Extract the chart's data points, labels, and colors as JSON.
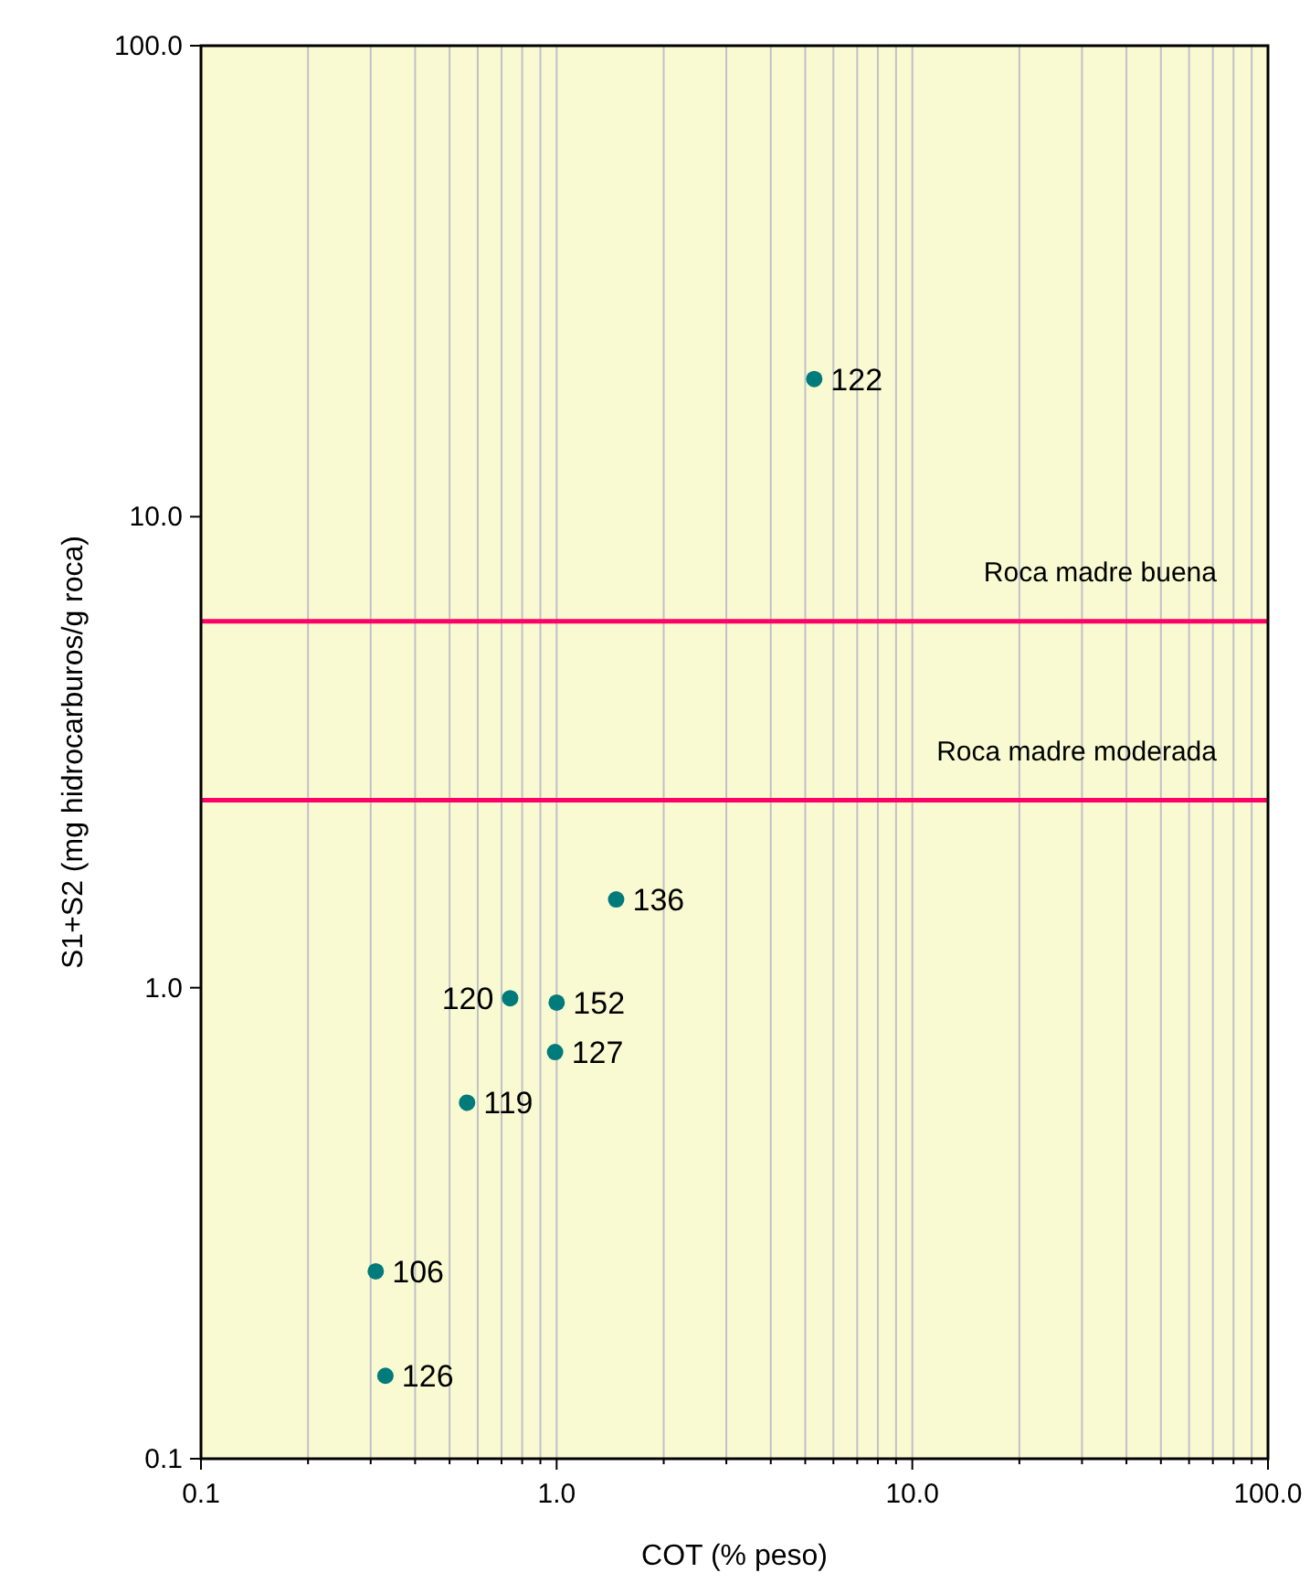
{
  "chart_data": {
    "type": "scatter",
    "xlabel": "COT (% peso)",
    "ylabel": "S1+S2 (mg hidrocarburos/g roca)",
    "log": "xy",
    "grid": "x",
    "marker": "circle",
    "xlim": [
      0.1,
      100
    ],
    "ylim": [
      0.1,
      100
    ],
    "xticks": [
      {
        "value": 0.1,
        "label": "0.1"
      },
      {
        "value": 0.2,
        "label": null
      },
      {
        "value": 0.3,
        "label": null
      },
      {
        "value": 0.4,
        "label": null
      },
      {
        "value": 0.5,
        "label": null
      },
      {
        "value": 0.6,
        "label": null
      },
      {
        "value": 0.7,
        "label": null
      },
      {
        "value": 0.8,
        "label": null
      },
      {
        "value": 0.9,
        "label": null
      },
      {
        "value": 1,
        "label": "1.0"
      },
      {
        "value": 2,
        "label": null
      },
      {
        "value": 3,
        "label": null
      },
      {
        "value": 4,
        "label": null
      },
      {
        "value": 5,
        "label": null
      },
      {
        "value": 6,
        "label": null
      },
      {
        "value": 7,
        "label": null
      },
      {
        "value": 8,
        "label": null
      },
      {
        "value": 9,
        "label": null
      },
      {
        "value": 10,
        "label": "10.0"
      },
      {
        "value": 20,
        "label": null
      },
      {
        "value": 30,
        "label": null
      },
      {
        "value": 40,
        "label": null
      },
      {
        "value": 50,
        "label": null
      },
      {
        "value": 60,
        "label": null
      },
      {
        "value": 70,
        "label": null
      },
      {
        "value": 80,
        "label": null
      },
      {
        "value": 90,
        "label": null
      },
      {
        "value": 100,
        "label": "100.0"
      }
    ],
    "yticks": [
      {
        "value": 0.1,
        "label": "0.1"
      },
      {
        "value": 1,
        "label": "1.0"
      },
      {
        "value": 10,
        "label": "10.0"
      },
      {
        "value": 100,
        "label": "100.0"
      }
    ],
    "series": [
      {
        "color": "#007b7b",
        "x": [
          5.3,
          1.47,
          0.74,
          1.0,
          0.99,
          0.56,
          0.31,
          0.33
        ],
        "values": [
          19.6,
          1.54,
          0.95,
          0.93,
          0.73,
          0.57,
          0.25,
          0.15
        ]
      }
    ],
    "annotations": [
      {
        "text": "122",
        "x": 5.3,
        "y": 19.6
      },
      {
        "text": "136",
        "x": 1.47,
        "y": 1.54
      },
      {
        "text": "120",
        "x": 0.74,
        "y": 0.95
      },
      {
        "text": "152",
        "x": 1.0,
        "y": 0.93
      },
      {
        "text": "127",
        "x": 0.99,
        "y": 0.73
      },
      {
        "text": "119",
        "x": 0.56,
        "y": 0.57
      },
      {
        "text": "106",
        "x": 0.31,
        "y": 0.25
      },
      {
        "text": "126",
        "x": 0.33,
        "y": 0.15
      }
    ],
    "ref_lines": [
      {
        "axis": "y",
        "value": 6,
        "label": "Roca madre buena",
        "color": "#ff0066"
      },
      {
        "axis": "y",
        "value": 2.5,
        "label": "Roca madre moderada",
        "color": "#ff0066"
      }
    ]
  }
}
